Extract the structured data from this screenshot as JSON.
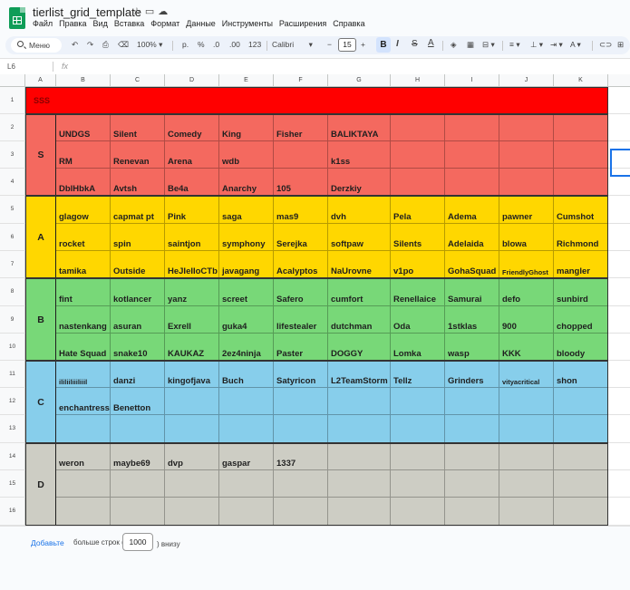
{
  "app": {
    "title": "tierlist_grid_template",
    "menu": [
      "Файл",
      "Правка",
      "Вид",
      "Вставка",
      "Формат",
      "Данные",
      "Инструменты",
      "Расширения",
      "Справка"
    ]
  },
  "toolbar": {
    "menu_label": "Меню",
    "zoom": "100%",
    "currency": "р.",
    "percent": "%",
    "dec_down": ".0",
    "dec_up": ".00",
    "number_format": "123",
    "font": "Calibri",
    "font_size": "15",
    "bold": "B",
    "italic": "I",
    "strike": "S",
    "text_color": "A"
  },
  "formula": {
    "cell_ref": "L6",
    "fx": "fx"
  },
  "columns": [
    "A",
    "B",
    "C",
    "D",
    "E",
    "F",
    "G",
    "H",
    "I",
    "J",
    "K"
  ],
  "rows": [
    "1",
    "2",
    "3",
    "4",
    "5",
    "6",
    "7",
    "8",
    "9",
    "10",
    "11",
    "12",
    "13",
    "14",
    "15",
    "16"
  ],
  "tiers": [
    {
      "label": "SSS",
      "color": "#ff0000",
      "rows": [
        []
      ]
    },
    {
      "label": "S",
      "color": "#f4695f",
      "rows": [
        [
          "UNDGS",
          "Silent",
          "Comedy",
          "King",
          "Fisher",
          "BALIKTAYA"
        ],
        [
          "RM",
          "Renevan",
          "Arena",
          "wdb",
          "",
          "k1ss"
        ],
        [
          "DblHbkA",
          "Avtsh",
          "Be4a",
          "Anarchy",
          "105",
          "Derzkiy"
        ]
      ]
    },
    {
      "label": "A",
      "color": "#ffd700",
      "rows": [
        [
          "glagow",
          "capmat pt",
          "Pink",
          "saga",
          "mas9",
          "dvh",
          "Pela",
          "Adema",
          "pawner",
          "Cumshot"
        ],
        [
          "rocket",
          "spin",
          "saintjon",
          "symphony",
          "Serejka",
          "softpaw",
          "Silents",
          "Adelaida",
          "blowa",
          "Richmond"
        ],
        [
          "tamika",
          "Outside",
          "HeJIeIIoCTb",
          "javagang",
          "Acalyptos",
          "NaUrovne",
          "v1po",
          "GohaSquad",
          "FriendlyGhost",
          "mangler"
        ]
      ]
    },
    {
      "label": "B",
      "color": "#78d878",
      "rows": [
        [
          "fint",
          "kotlancer",
          "yanz",
          "screet",
          "Safero",
          "cumfort",
          "Renellaice",
          "Samurai",
          "defo",
          "sunbird"
        ],
        [
          "nastenkang",
          "asuran",
          "Exrell",
          "guka4",
          "lifestealer",
          "dutchman",
          "Oda",
          "1stklas",
          "900",
          "chopped"
        ],
        [
          "Hate Squad",
          "snake10",
          "KAUKAZ",
          "2ez4ninja",
          "Paster",
          "DOGGY",
          "Lomka",
          "wasp",
          "KKK",
          "bloody"
        ]
      ]
    },
    {
      "label": "C",
      "color": "#87ceeb",
      "rows": [
        [
          "ililiiliiiliiil",
          "danzi",
          "kingofjava",
          "Buch",
          "Satyricon",
          "L2TeamStorm",
          "Tellz",
          "Grinders",
          "vityacritical",
          "shon"
        ],
        [
          "enchantress",
          "Benetton"
        ],
        []
      ]
    },
    {
      "label": "D",
      "color": "#cdcdc4",
      "rows": [
        [
          "weron",
          "maybe69",
          "dvp",
          "gaspar",
          "1337"
        ],
        [],
        []
      ]
    }
  ],
  "footer": {
    "add_label": "Добавьте",
    "more_label": "больше строк (",
    "rows_value": "1000",
    "below_label": ") внизу"
  }
}
